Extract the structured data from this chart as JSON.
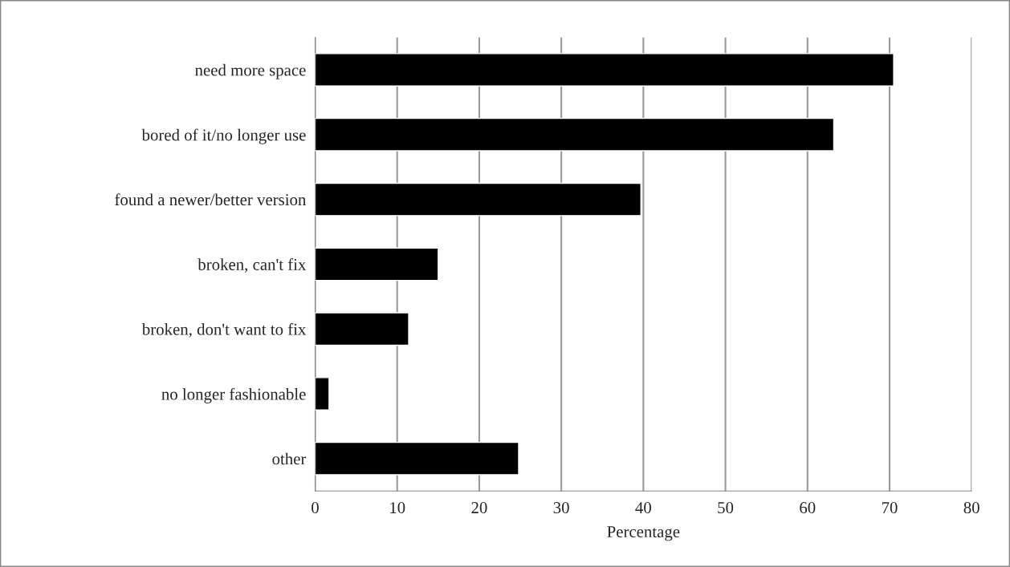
{
  "chart_data": {
    "type": "bar",
    "orientation": "horizontal",
    "xlabel": "Percentage",
    "categories": [
      "need more space",
      "bored of it/no longer use",
      "found a newer/better version",
      "broken, can't fix",
      "broken, don't want to fix",
      "no longer fashionable",
      "other"
    ],
    "values": [
      70.5,
      63.2,
      39.7,
      15.0,
      11.4,
      1.7,
      24.8
    ],
    "color": "#000000",
    "xlim": [
      0,
      80
    ],
    "xticks": [
      0,
      10,
      20,
      30,
      40,
      50,
      60,
      70,
      80
    ],
    "grid": "x",
    "legend": false
  }
}
